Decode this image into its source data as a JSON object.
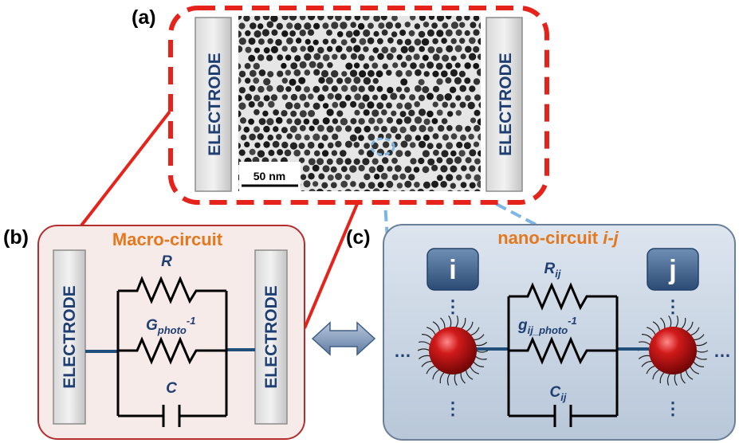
{
  "panels": {
    "a_label": "(a)",
    "b_label": "(b)",
    "c_label": "(c)"
  },
  "electrode_label": "ELECTRODE",
  "tem": {
    "scale_bar": "50 nm"
  },
  "macro": {
    "title": "Macro-circuit",
    "r_label": "R",
    "g_label": "G",
    "g_sub": "photo",
    "g_sup": "-1",
    "c_label": "C"
  },
  "nano": {
    "title_prefix": "nano-circuit ",
    "title_ij": "i-j",
    "node_i": "i",
    "node_j": "j",
    "r_label": "R",
    "r_sub": "ij",
    "g_label": "g",
    "g_sub": "ij_photo",
    "g_sup": "-1",
    "c_label": "C",
    "c_sub": "ij",
    "ellipsis": "…",
    "vdots": "⋮"
  },
  "colors": {
    "dash_red": "#e5231b",
    "dash_blue": "#7bb6e6",
    "macro_fill": "#f7ebea",
    "macro_border": "#b42e2e",
    "nano_fill": "#c9d5e4",
    "nano_border": "#6b7f99",
    "wire": "#1f4f7a",
    "accent_orange": "#e5771d",
    "sphere": "#b30d0d"
  }
}
